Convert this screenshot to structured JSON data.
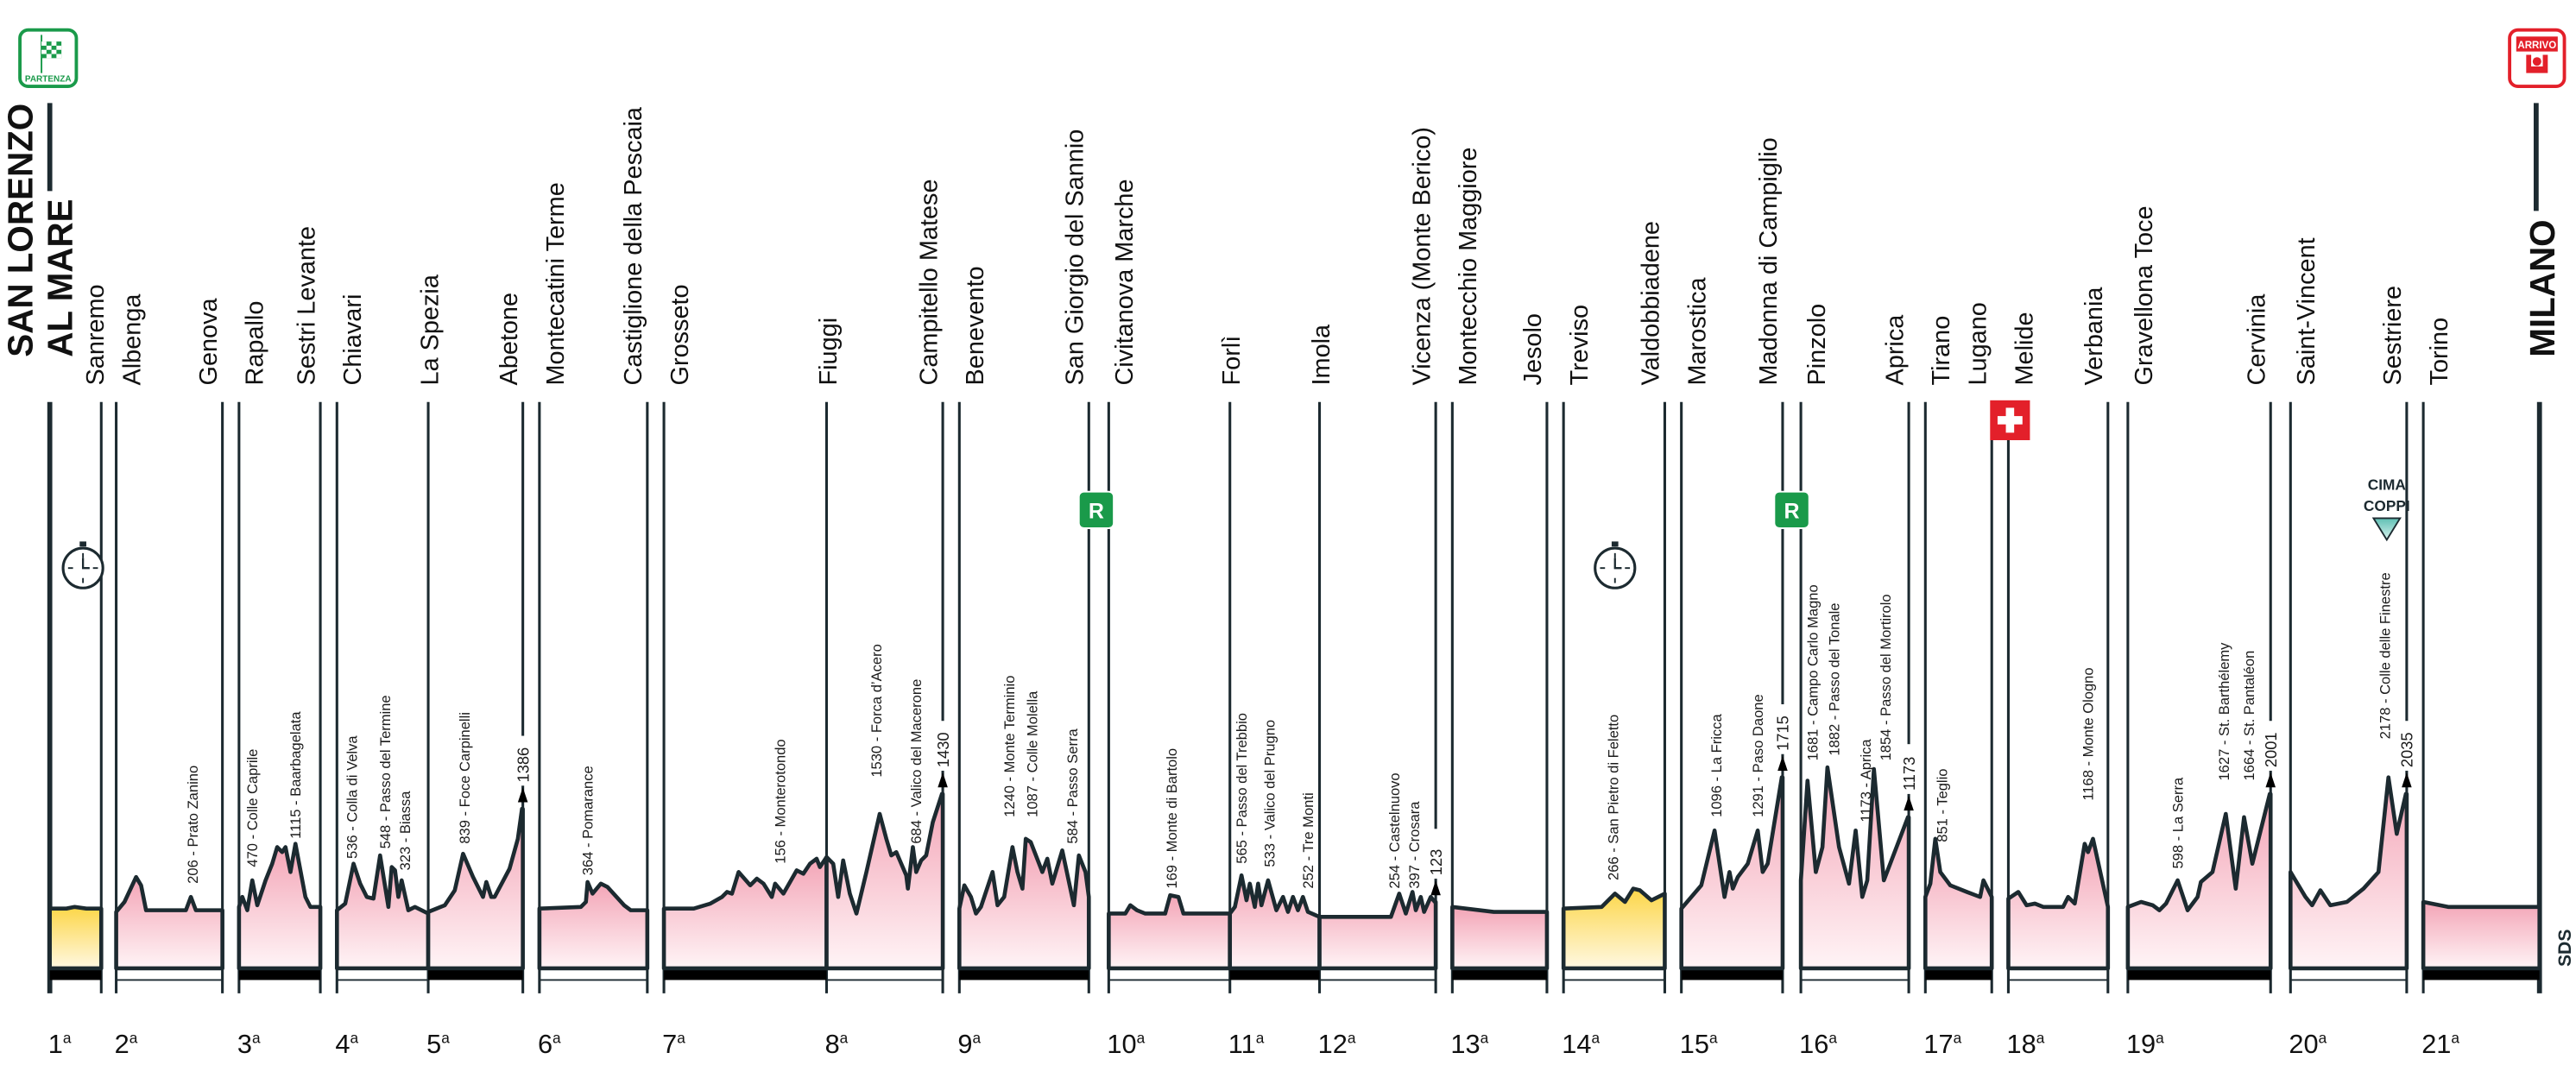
{
  "start": {
    "badge": "PARTENZA",
    "city_line1": "SAN LORENZO",
    "city_line2": "AL MARE"
  },
  "finish": {
    "badge": "ARRIVO",
    "city": "MILANO"
  },
  "cities": [
    "Sanremo",
    "Albenga",
    "Genova",
    "Rapallo",
    "Sestri Levante",
    "Chiavari",
    "La Spezia",
    "Abetone",
    "Montecatini Terme",
    "Castiglione della Pescaia",
    "Grosseto",
    "Fiuggi",
    "Campitello Matese",
    "Benevento",
    "San Giorgio del Sannio",
    "Civitanova Marche",
    "Forlì",
    "Imola",
    "Vicenza (Monte Berico)",
    "Montecchio Maggiore",
    "Jesolo",
    "Treviso",
    "Valdobbiadene",
    "Marostica",
    "Madonna di Campiglio",
    "Pinzolo",
    "Aprica",
    "Tirano",
    "Lugano",
    "Melide",
    "Verbania",
    "Gravellona Toce",
    "Cervinia",
    "Saint-Vincent",
    "Sestriere",
    "Torino"
  ],
  "stages": [
    {
      "num": "1",
      "sup": "a",
      "type": "time-trial",
      "climbs": [],
      "summit": null
    },
    {
      "num": "2",
      "sup": "a",
      "type": "road",
      "climbs": [
        "206 - Prato Zanino"
      ],
      "summit": null
    },
    {
      "num": "3",
      "sup": "a",
      "type": "road",
      "climbs": [
        "470 - Colle Caprile",
        "1115 - Baarbagelata"
      ],
      "summit": null
    },
    {
      "num": "4",
      "sup": "a",
      "type": "road",
      "climbs": [
        "536 - Colla di Velva",
        "548 - Passo del Termine",
        "323 - Biassa"
      ],
      "summit": null
    },
    {
      "num": "5",
      "sup": "a",
      "type": "road",
      "climbs": [
        "839 - Foce Carpinelli"
      ],
      "summit": "1386"
    },
    {
      "num": "6",
      "sup": "a",
      "type": "road",
      "climbs": [
        "364 - Pomarance"
      ],
      "summit": null
    },
    {
      "num": "7",
      "sup": "a",
      "type": "road",
      "climbs": [
        "156 - Monterotondo"
      ],
      "summit": null
    },
    {
      "num": "8",
      "sup": "a",
      "type": "road",
      "climbs": [
        "1530 - Forca d’Acero",
        "684 - Valico del Macerone"
      ],
      "summit": "1430"
    },
    {
      "num": "9",
      "sup": "a",
      "type": "road",
      "climbs": [
        "1240 - Monte Terminio",
        "1087 - Colle Molella",
        "584 - Passo Serra"
      ],
      "summit": null
    },
    {
      "num": "10",
      "sup": "a",
      "type": "road",
      "climbs": [
        "169 - Monte di Bartolo"
      ],
      "summit": null
    },
    {
      "num": "11",
      "sup": "a",
      "type": "road",
      "climbs": [
        "565 - Passo del Trebbio",
        "533 - Valico del Prugno",
        "252 - Tre Monti"
      ],
      "summit": null
    },
    {
      "num": "12",
      "sup": "a",
      "type": "road",
      "climbs": [
        "254 - Castelnuovo",
        "397 - Crosara"
      ],
      "summit": "123"
    },
    {
      "num": "13",
      "sup": "a",
      "type": "road",
      "climbs": [],
      "summit": null
    },
    {
      "num": "14",
      "sup": "a",
      "type": "time-trial",
      "climbs": [
        "266 - San Pietro di Feletto"
      ],
      "summit": null
    },
    {
      "num": "15",
      "sup": "a",
      "type": "road",
      "climbs": [
        "1096 - La Fricca",
        "1291 - Paso Daone"
      ],
      "summit": "1715"
    },
    {
      "num": "16",
      "sup": "a",
      "type": "road",
      "climbs": [
        "1681 - Campo Carlo Magno",
        "1882 - Passo del Tonale",
        "1173 - Aprica",
        "1854 - Passo del Mortirolo"
      ],
      "summit": "1173"
    },
    {
      "num": "17",
      "sup": "a",
      "type": "road",
      "climbs": [
        "851 - Teglio"
      ],
      "summit": null
    },
    {
      "num": "18",
      "sup": "a",
      "type": "road",
      "climbs": [
        "1168 - Monte Ologno"
      ],
      "summit": null
    },
    {
      "num": "19",
      "sup": "a",
      "type": "road",
      "climbs": [
        "598 - La Serra",
        "1627 - St. Barthélemy",
        "1664 - St. Pantaléon"
      ],
      "summit": "2001"
    },
    {
      "num": "20",
      "sup": "a",
      "type": "road",
      "climbs": [
        "2178 - Colle delle Finestre"
      ],
      "summit": "2035"
    },
    {
      "num": "21",
      "sup": "a",
      "type": "road",
      "climbs": [],
      "summit": null
    }
  ],
  "markers": {
    "rest_day": "R",
    "cima_coppi_line1": "CIMA",
    "cima_coppi_line2": "COPPI",
    "logo": "SDS",
    "time_trial_icon": "stopwatch-icon",
    "switzerland_icon": "swiss-flag-icon"
  },
  "colors": {
    "profile_fill": "#f5b0bf",
    "time_trial_fill": "#fcd84c",
    "outline": "#1c2a30",
    "start_green": "#1a9a4a",
    "finish_red": "#e3202a",
    "cima_coppi": "#8fd6cc"
  }
}
